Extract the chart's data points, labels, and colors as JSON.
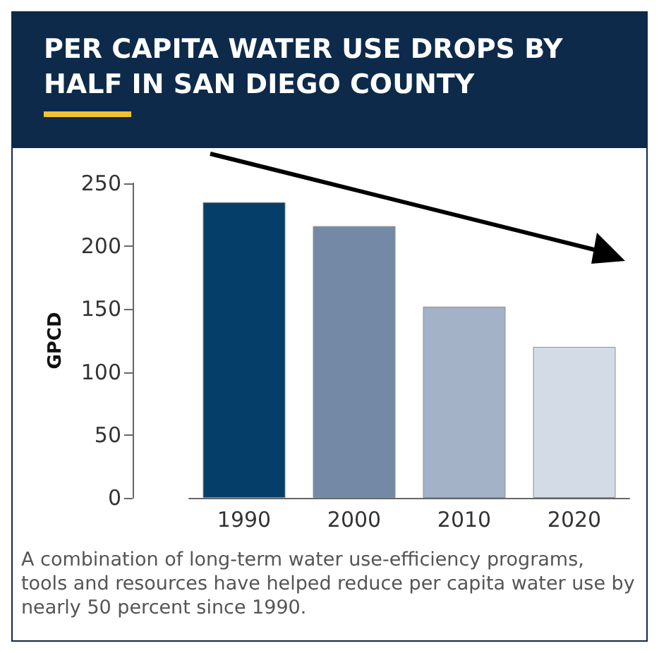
{
  "chart_data": {
    "type": "bar",
    "title": "PER CAPITA WATER USE DROPS BY HALF IN SAN DIEGO COUNTY",
    "ylabel": "GPCD",
    "categories": [
      "1990",
      "2000",
      "2010",
      "2020"
    ],
    "values": [
      235,
      216,
      152,
      120
    ],
    "colors": [
      "#053e68",
      "#7489a5",
      "#a3b2c6",
      "#d3dbe6"
    ],
    "ylim": [
      0,
      250
    ],
    "yticks": [
      0,
      50,
      100,
      150,
      200,
      250
    ],
    "grid": false,
    "annotations": [
      "A combination of long-term water use-efficiency programs, tools and resources have helped reduce per capita water use by nearly 50 percent since 1990."
    ]
  }
}
